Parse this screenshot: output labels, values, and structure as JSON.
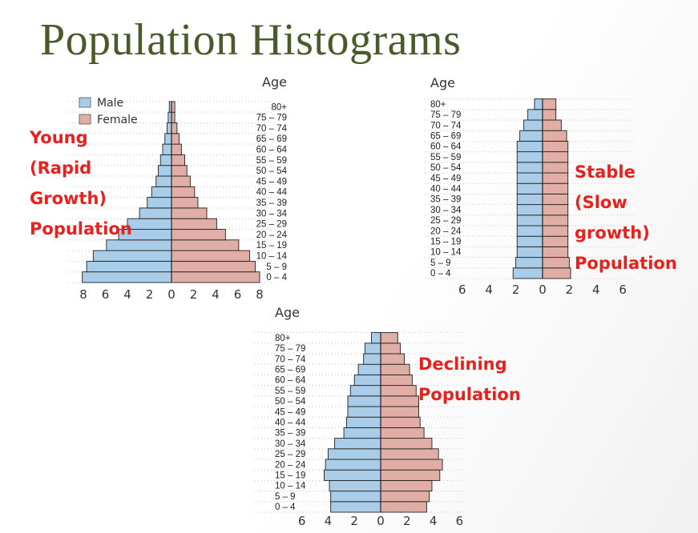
{
  "slide": {
    "title": "Population Histograms"
  },
  "labels": {
    "young": "Young\n(Rapid\nGrowth)\nPopulation",
    "stable": "Stable\n(Slow\ngrowth)\nPopulation",
    "declining": "Declining\nPopulation"
  },
  "colors": {
    "male": "#a9cde8",
    "female": "#e0aea4",
    "outline": "#222222",
    "title": "#4a5a2a",
    "callout": "#e8211d"
  },
  "chart_data": [
    {
      "type": "bar",
      "orientation": "horizontal-pyramid",
      "age_header": "Age",
      "categories": [
        "0 – 4",
        "5 – 9",
        "10 – 14",
        "15 – 19",
        "20 – 24",
        "25 – 29",
        "30 – 34",
        "35 – 39",
        "40 – 44",
        "45 – 49",
        "50 – 54",
        "55 – 59",
        "60 – 64",
        "65 – 69",
        "70 – 74",
        "75 – 79",
        "80+"
      ],
      "legend": [
        "Male",
        "Female"
      ],
      "series": [
        {
          "name": "Male",
          "values": [
            8.1,
            7.7,
            7.1,
            5.9,
            4.8,
            4.0,
            2.9,
            2.2,
            1.8,
            1.4,
            1.2,
            1.0,
            0.8,
            0.6,
            0.4,
            0.3,
            0.2
          ]
        },
        {
          "name": "Female",
          "values": [
            8.0,
            7.6,
            7.1,
            6.1,
            4.9,
            4.1,
            3.2,
            2.4,
            2.1,
            1.7,
            1.4,
            1.2,
            0.9,
            0.7,
            0.5,
            0.3,
            0.3
          ]
        }
      ],
      "xticks": [
        "8",
        "6",
        "4",
        "2",
        "0",
        "2",
        "4",
        "6",
        "8"
      ],
      "xlim": [
        -8,
        8
      ]
    },
    {
      "type": "bar",
      "orientation": "horizontal-pyramid",
      "age_header": "Age",
      "categories": [
        "0 – 4",
        "5 – 9",
        "10 – 14",
        "15 – 19",
        "20 – 24",
        "25 – 29",
        "30 – 34",
        "35 – 39",
        "40 – 44",
        "45 – 49",
        "50 – 54",
        "55 – 59",
        "60 – 64",
        "65 – 69",
        "70 – 74",
        "75 – 79",
        "80+"
      ],
      "series": [
        {
          "name": "Male",
          "values": [
            2.2,
            2.0,
            1.9,
            1.9,
            1.9,
            1.9,
            1.9,
            1.9,
            1.9,
            1.9,
            1.9,
            1.9,
            1.9,
            1.7,
            1.4,
            1.1,
            0.6
          ]
        },
        {
          "name": "Female",
          "values": [
            2.1,
            2.0,
            1.9,
            1.9,
            1.9,
            1.9,
            1.9,
            1.9,
            1.9,
            1.9,
            1.9,
            1.9,
            1.9,
            1.8,
            1.4,
            1.0,
            1.0
          ]
        }
      ],
      "xticks": [
        "6",
        "4",
        "2",
        "0",
        "2",
        "4",
        "6"
      ],
      "xlim": [
        -6,
        6
      ]
    },
    {
      "type": "bar",
      "orientation": "horizontal-pyramid",
      "age_header": "Age",
      "categories": [
        "0 – 4",
        "5 – 9",
        "10 – 14",
        "15 – 19",
        "20 – 24",
        "25 – 29",
        "30 – 34",
        "35 – 39",
        "40 – 44",
        "45 – 49",
        "50 – 54",
        "55 – 59",
        "60 – 64",
        "65 – 69",
        "70 – 74",
        "75 – 79",
        "80+"
      ],
      "series": [
        {
          "name": "Male",
          "values": [
            3.8,
            3.8,
            3.9,
            4.3,
            4.2,
            4.0,
            3.5,
            2.8,
            2.6,
            2.5,
            2.5,
            2.3,
            2.0,
            1.7,
            1.3,
            1.2,
            0.7
          ]
        },
        {
          "name": "Female",
          "values": [
            3.5,
            3.7,
            3.9,
            4.5,
            4.7,
            4.4,
            3.9,
            3.3,
            3.0,
            2.9,
            2.9,
            2.7,
            2.4,
            2.2,
            1.8,
            1.5,
            1.3
          ]
        }
      ],
      "xticks": [
        "6",
        "4",
        "2",
        "0",
        "2",
        "4",
        "6"
      ],
      "xlim": [
        -6,
        6
      ]
    }
  ]
}
